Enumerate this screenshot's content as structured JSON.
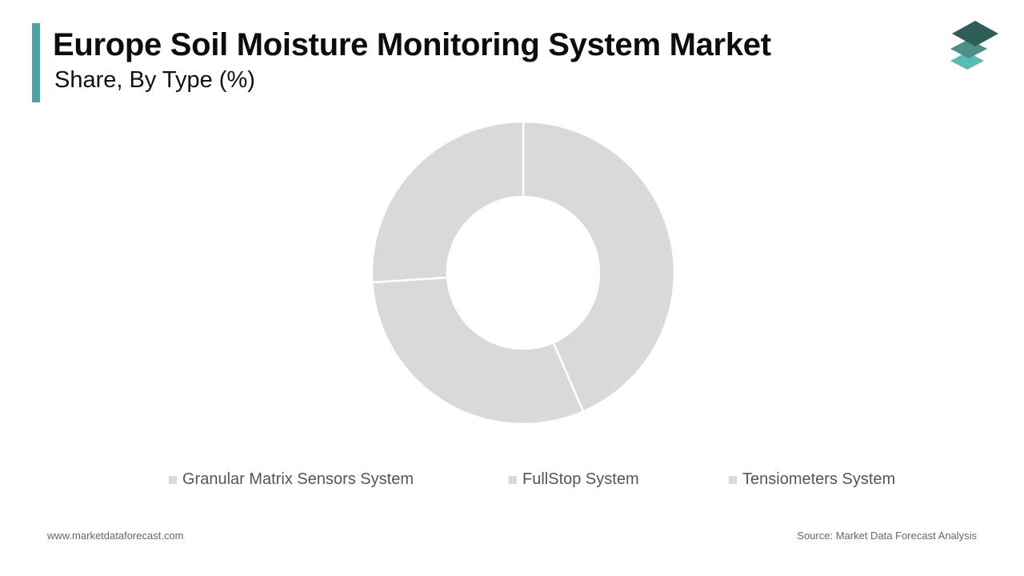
{
  "header": {
    "title": "Europe Soil Moisture Monitoring System Market",
    "subtitle": "Share, By Type (%)"
  },
  "colors": {
    "accent": "#4aa6a4",
    "slice": "#d9d9d9",
    "slice_border": "#ffffff",
    "logo_dark": "#2f5e57",
    "logo_mid": "#4d8f87",
    "logo_light": "#58bcb4"
  },
  "chart_data": {
    "type": "pie",
    "donut": true,
    "title": "Europe Soil Moisture Monitoring System Market",
    "subtitle": "Share, By Type (%)",
    "categories": [
      "Granular Matrix Sensors System",
      "FullStop System",
      "Tensiometers System"
    ],
    "values": [
      43.5,
      30.5,
      26.0
    ],
    "legend_position": "bottom",
    "data_labels": false
  },
  "footer": {
    "website": "www.marketdataforecast.com",
    "source": "Source: Market Data Forecast Analysis"
  }
}
